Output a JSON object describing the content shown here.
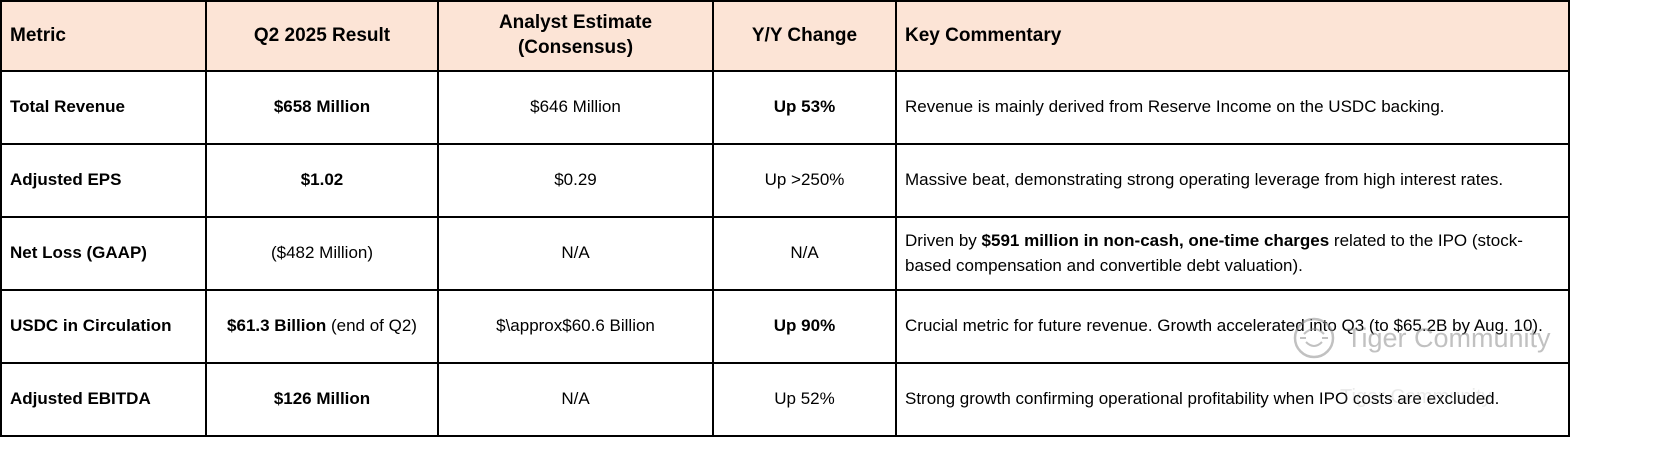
{
  "colors": {
    "header_bg": "#fce4d6",
    "border": "#000000",
    "watermark": "#8f8f8f"
  },
  "watermark": {
    "text": "Tiger Community"
  },
  "table": {
    "columns": [
      {
        "key": "metric",
        "label": "Metric"
      },
      {
        "key": "result",
        "label": "Q2 2025 Result"
      },
      {
        "key": "estimate",
        "label": "Analyst Estimate (Consensus)"
      },
      {
        "key": "change",
        "label": "Y/Y Change"
      },
      {
        "key": "commentary",
        "label": "Key Commentary"
      }
    ],
    "rows": [
      {
        "cells": [
          {
            "align": "left",
            "segments": [
              {
                "text": "Total Revenue",
                "bold": true
              }
            ]
          },
          {
            "align": "center",
            "segments": [
              {
                "text": "$658 Million",
                "bold": true
              }
            ]
          },
          {
            "align": "center",
            "segments": [
              {
                "text": "$646 Million",
                "bold": false
              }
            ]
          },
          {
            "align": "center",
            "segments": [
              {
                "text": "Up 53%",
                "bold": true
              }
            ]
          },
          {
            "align": "left",
            "segments": [
              {
                "text": "Revenue is mainly derived from Reserve Income on the USDC backing.",
                "bold": false
              }
            ]
          }
        ]
      },
      {
        "cells": [
          {
            "align": "left",
            "segments": [
              {
                "text": "Adjusted EPS",
                "bold": true
              }
            ]
          },
          {
            "align": "center",
            "segments": [
              {
                "text": "$1.02",
                "bold": true
              }
            ]
          },
          {
            "align": "center",
            "segments": [
              {
                "text": "$0.29",
                "bold": false
              }
            ]
          },
          {
            "align": "center",
            "segments": [
              {
                "text": "Up >250%",
                "bold": false
              }
            ]
          },
          {
            "align": "left",
            "segments": [
              {
                "text": "Massive beat, demonstrating strong operating leverage from high interest rates.",
                "bold": false
              }
            ]
          }
        ]
      },
      {
        "cells": [
          {
            "align": "left",
            "segments": [
              {
                "text": "Net Loss (GAAP)",
                "bold": true
              }
            ]
          },
          {
            "align": "center",
            "segments": [
              {
                "text": "($482 Million)",
                "bold": false
              }
            ]
          },
          {
            "align": "center",
            "segments": [
              {
                "text": "N/A",
                "bold": false
              }
            ]
          },
          {
            "align": "center",
            "segments": [
              {
                "text": "N/A",
                "bold": false
              }
            ]
          },
          {
            "align": "left",
            "segments": [
              {
                "text": "Driven by ",
                "bold": false
              },
              {
                "text": "$591 million in non-cash, one-time charges",
                "bold": true
              },
              {
                "text": " related to the IPO (stock-based compensation and convertible debt valuation).",
                "bold": false
              }
            ]
          }
        ]
      },
      {
        "cells": [
          {
            "align": "left",
            "segments": [
              {
                "text": "USDC in Circulation",
                "bold": true
              }
            ]
          },
          {
            "align": "center",
            "segments": [
              {
                "text": "$61.3 Billion",
                "bold": true
              },
              {
                "text": " (end of Q2)",
                "bold": false
              }
            ]
          },
          {
            "align": "center",
            "segments": [
              {
                "text": "$\\approx$60.6 Billion",
                "bold": false
              }
            ]
          },
          {
            "align": "center",
            "segments": [
              {
                "text": "Up 90%",
                "bold": true
              }
            ]
          },
          {
            "align": "left",
            "segments": [
              {
                "text": "Crucial metric for future revenue. Growth accelerated into Q3 (to $65.2B by Aug. 10).",
                "bold": false
              }
            ]
          }
        ]
      },
      {
        "cells": [
          {
            "align": "left",
            "segments": [
              {
                "text": "Adjusted EBITDA",
                "bold": true
              }
            ]
          },
          {
            "align": "center",
            "segments": [
              {
                "text": "$126 Million",
                "bold": true
              }
            ]
          },
          {
            "align": "center",
            "segments": [
              {
                "text": "N/A",
                "bold": false
              }
            ]
          },
          {
            "align": "center",
            "segments": [
              {
                "text": "Up 52%",
                "bold": false
              }
            ]
          },
          {
            "align": "left",
            "segments": [
              {
                "text": "Strong growth confirming operational profitability when IPO costs are excluded.",
                "bold": false
              }
            ]
          }
        ]
      }
    ]
  },
  "chart_data": {
    "type": "table",
    "columns": [
      "Metric",
      "Q2 2025 Result",
      "Analyst Estimate (Consensus)",
      "Y/Y Change",
      "Key Commentary"
    ],
    "rows": [
      [
        "Total Revenue",
        "$658 Million",
        "$646 Million",
        "Up 53%",
        "Revenue is mainly derived from Reserve Income on the USDC backing."
      ],
      [
        "Adjusted EPS",
        "$1.02",
        "$0.29",
        "Up >250%",
        "Massive beat, demonstrating strong operating leverage from high interest rates."
      ],
      [
        "Net Loss (GAAP)",
        "($482 Million)",
        "N/A",
        "N/A",
        "Driven by $591 million in non-cash, one-time charges related to the IPO (stock-based compensation and convertible debt valuation)."
      ],
      [
        "USDC in Circulation",
        "$61.3 Billion (end of Q2)",
        "$\\approx$60.6 Billion",
        "Up 90%",
        "Crucial metric for future revenue. Growth accelerated into Q3 (to $65.2B by Aug. 10)."
      ],
      [
        "Adjusted EBITDA",
        "$126 Million",
        "N/A",
        "Up 52%",
        "Strong growth confirming operational profitability when IPO costs are excluded."
      ]
    ]
  }
}
